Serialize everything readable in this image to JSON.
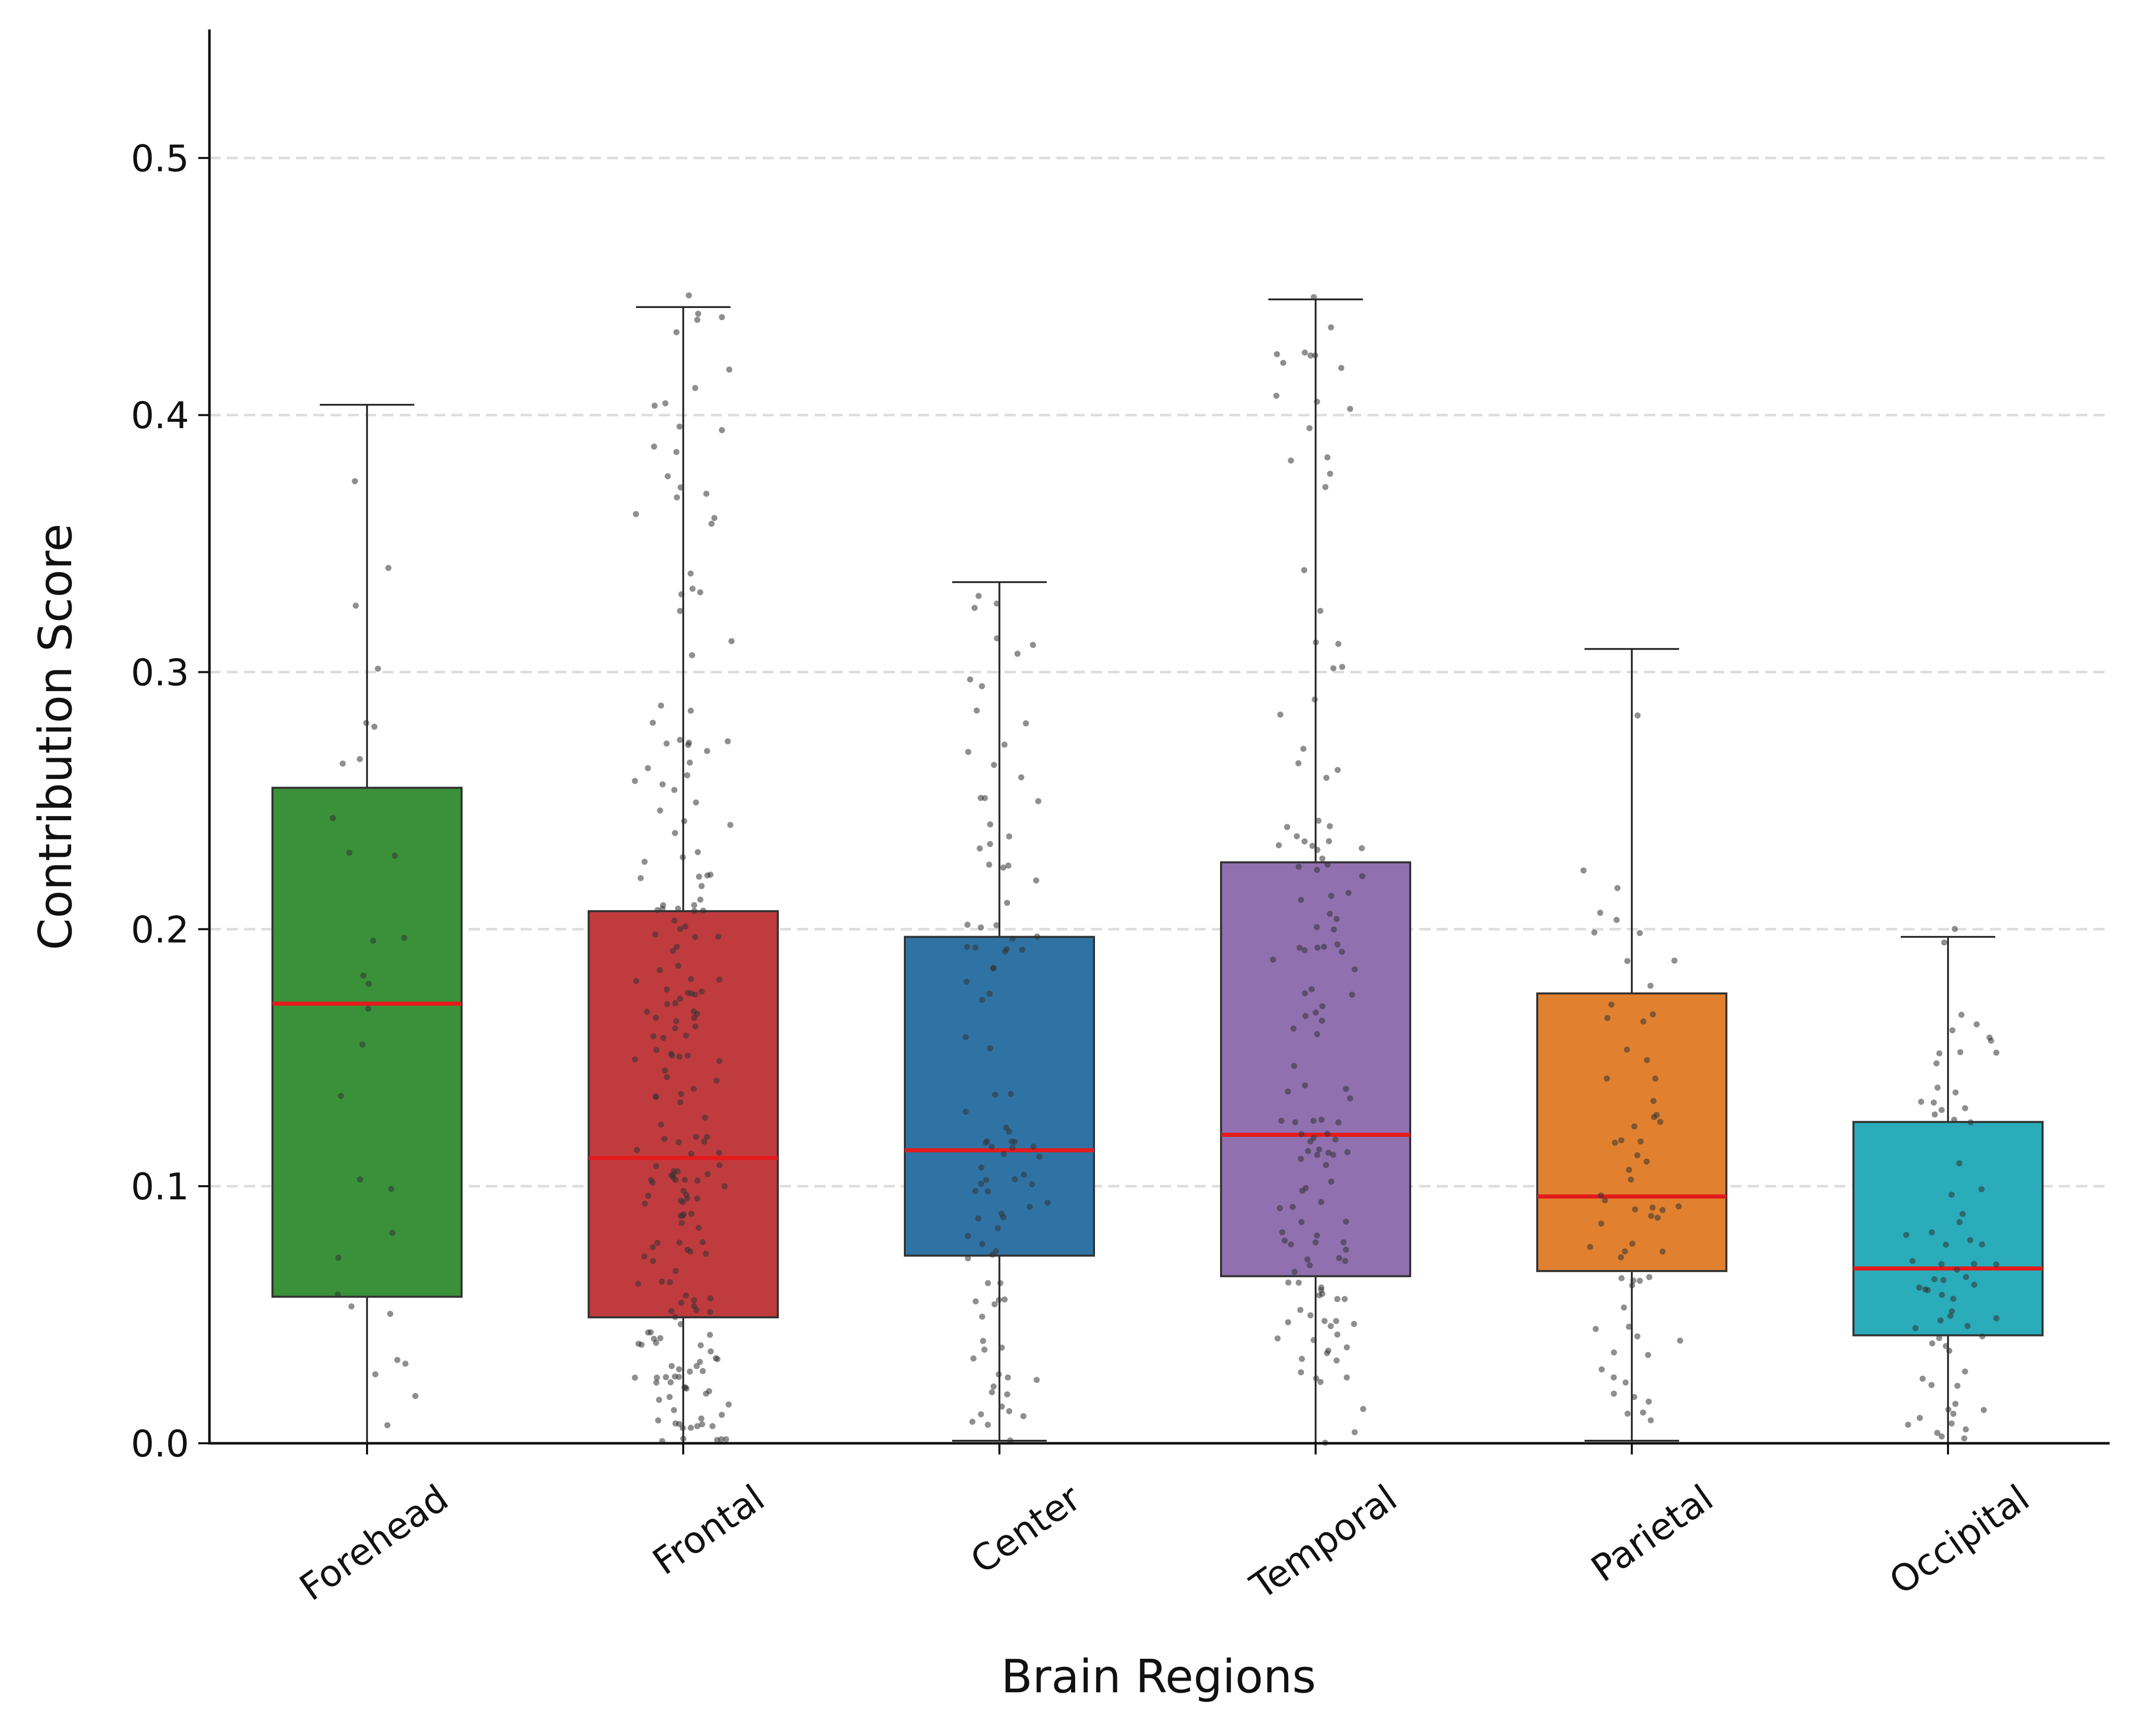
{
  "chart_data": {
    "type": "box",
    "title": "",
    "xlabel": "Brain Regions",
    "ylabel": "Contribution Score",
    "ylim": [
      0,
      0.55
    ],
    "yticks": [
      0.0,
      0.1,
      0.2,
      0.3,
      0.4,
      0.5
    ],
    "ytick_labels": [
      "0.0",
      "0.1",
      "0.2",
      "0.3",
      "0.4",
      "0.5"
    ],
    "grid": "horizontal-dashed",
    "median_color": "#e41a1c",
    "point_color": "#333333",
    "boxes": [
      {
        "label": "Forehead",
        "color": "#3a913a",
        "whisker_low": 0.0,
        "q1": 0.057,
        "median": 0.171,
        "q3": 0.255,
        "whisker_high": 0.404,
        "n": 30
      },
      {
        "label": "Frontal",
        "color": "#c03b3e",
        "whisker_low": 0.0,
        "q1": 0.049,
        "median": 0.111,
        "q3": 0.207,
        "whisker_high": 0.442,
        "n": 220
      },
      {
        "label": "Center",
        "color": "#2f73a5",
        "whisker_low": 0.001,
        "q1": 0.073,
        "median": 0.114,
        "q3": 0.197,
        "whisker_high": 0.335,
        "n": 100
      },
      {
        "label": "Temporal",
        "color": "#9170b0",
        "whisker_low": 0.0,
        "q1": 0.065,
        "median": 0.12,
        "q3": 0.226,
        "whisker_high": 0.445,
        "n": 140
      },
      {
        "label": "Parietal",
        "color": "#e1812f",
        "whisker_low": 0.001,
        "q1": 0.067,
        "median": 0.096,
        "q3": 0.175,
        "whisker_high": 0.309,
        "n": 65
      },
      {
        "label": "Occipital",
        "color": "#2aacba",
        "whisker_low": 0.0,
        "q1": 0.042,
        "median": 0.068,
        "q3": 0.125,
        "whisker_high": 0.197,
        "n": 70
      }
    ]
  }
}
